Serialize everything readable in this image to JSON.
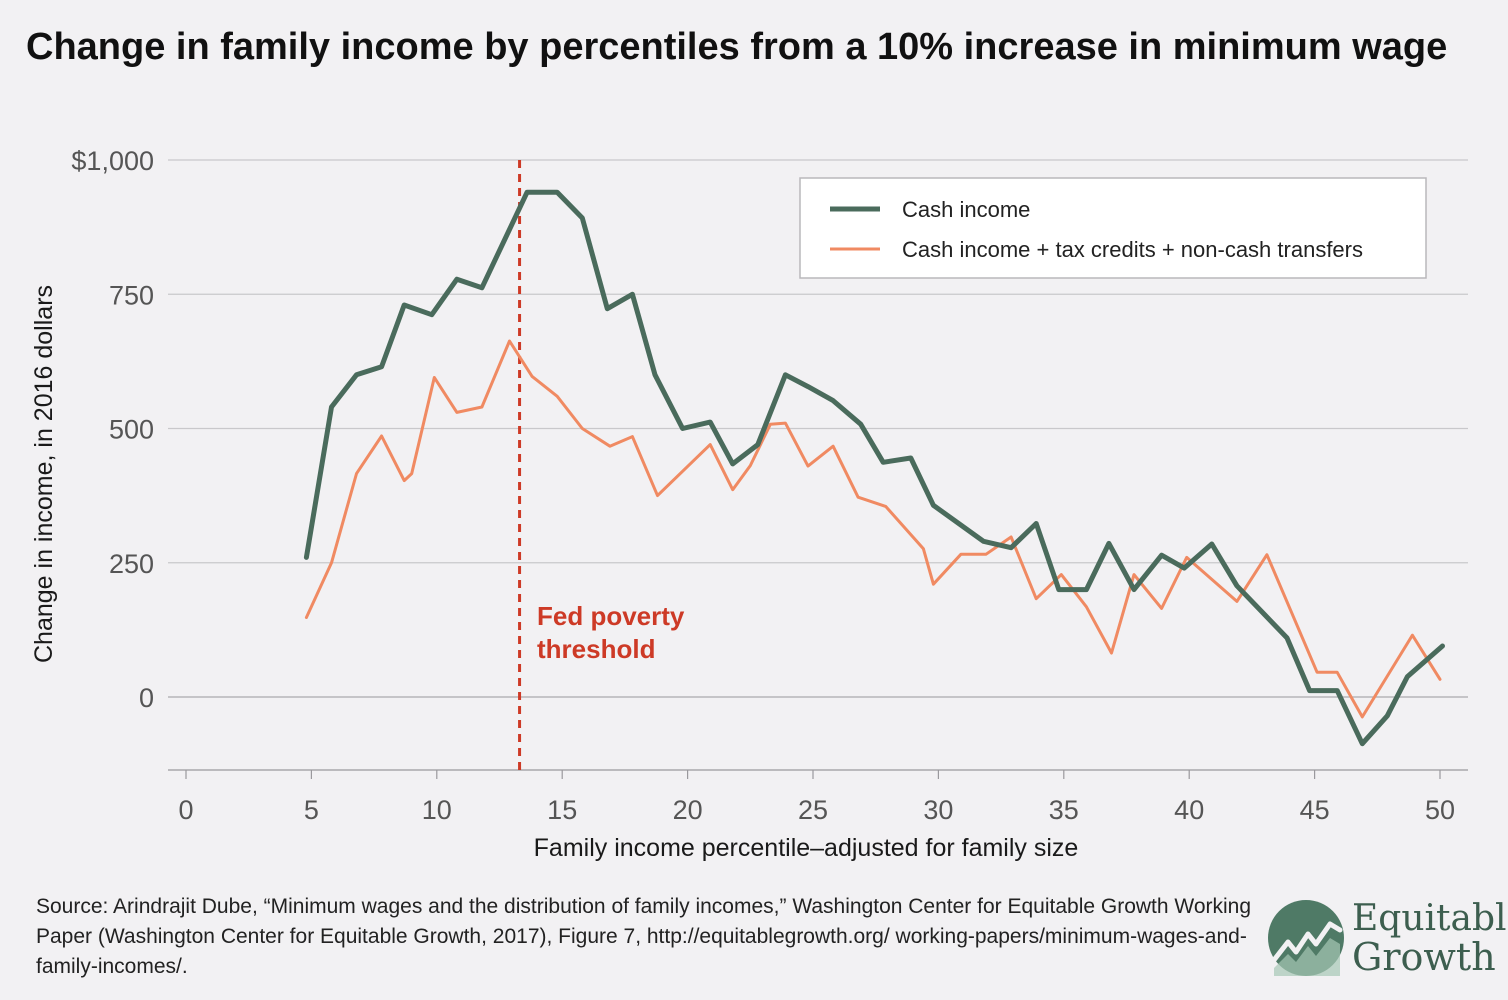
{
  "colors": {
    "background": "#f2f1f3",
    "cash": "#4a6b5c",
    "total": "#f08a62",
    "threshold": "#cd3a26",
    "grid": "#c9c8cb",
    "axis_text": "#555555",
    "logo_green": "#3d5e4f"
  },
  "source": "Source: Arindrajit Dube, “Minimum wages and the distribution of family incomes,” Washington Center for Equitable Growth Working Paper (Washington Center for Equitable Growth, 2017), Figure 7, http://equitablegrowth.org/ working-papers/minimum-wages-and-family-incomes/.",
  "logo": {
    "word1": "Equitable",
    "word2": "Growth",
    "icon": "chart-circle-icon"
  },
  "chart_data": {
    "type": "line",
    "title": "Change in family income by percentiles from a 10% increase in minimum wage",
    "xlabel": "Family income percentile–adjusted for family size",
    "ylabel": "Change in income, in 2016 dollars",
    "xlim": [
      0,
      50
    ],
    "ylim": [
      -135,
      1000
    ],
    "x_ticks": [
      0,
      5,
      10,
      15,
      20,
      25,
      30,
      35,
      40,
      45,
      50
    ],
    "x_tick_labels": [
      "0",
      "5",
      "10",
      "15",
      "20",
      "25",
      "30",
      "35",
      "40",
      "45",
      "50"
    ],
    "y_ticks": [
      0,
      250,
      500,
      750,
      1000
    ],
    "y_tick_labels": [
      "0",
      "250",
      "500",
      "750",
      "$1,000"
    ],
    "grid": "horizontal",
    "legend_position": "top-right",
    "series": [
      {
        "name": "Cash income",
        "points": [
          [
            4.8,
            260
          ],
          [
            5.8,
            540
          ],
          [
            6.8,
            600
          ],
          [
            7.8,
            615
          ],
          [
            8.7,
            730
          ],
          [
            9.8,
            712
          ],
          [
            10.8,
            778
          ],
          [
            11.8,
            762
          ],
          [
            13.6,
            940
          ],
          [
            14.8,
            940
          ],
          [
            15.8,
            892
          ],
          [
            16.8,
            723
          ],
          [
            17.8,
            750
          ],
          [
            18.7,
            600
          ],
          [
            19.8,
            500
          ],
          [
            20.9,
            512
          ],
          [
            21.8,
            434
          ],
          [
            22.8,
            470
          ],
          [
            23.9,
            600
          ],
          [
            24.8,
            578
          ],
          [
            25.8,
            552
          ],
          [
            26.9,
            508
          ],
          [
            27.8,
            437
          ],
          [
            28.9,
            445
          ],
          [
            29.8,
            357
          ],
          [
            31.8,
            290
          ],
          [
            32.9,
            278
          ],
          [
            33.9,
            323
          ],
          [
            34.8,
            200
          ],
          [
            35.9,
            200
          ],
          [
            36.8,
            286
          ],
          [
            37.8,
            200
          ],
          [
            38.9,
            264
          ],
          [
            39.8,
            240
          ],
          [
            40.9,
            285
          ],
          [
            41.9,
            207
          ],
          [
            43.9,
            110
          ],
          [
            44.8,
            12
          ],
          [
            45.9,
            12
          ],
          [
            46.9,
            -87
          ],
          [
            47.9,
            -35
          ],
          [
            48.7,
            38
          ],
          [
            50.1,
            95
          ]
        ]
      },
      {
        "name": "Cash income + tax credits + non-cash transfers",
        "points": [
          [
            4.8,
            148
          ],
          [
            5.8,
            250
          ],
          [
            6.8,
            416
          ],
          [
            7.8,
            486
          ],
          [
            8.7,
            403
          ],
          [
            9.0,
            416
          ],
          [
            9.9,
            595
          ],
          [
            10.8,
            530
          ],
          [
            11.8,
            540
          ],
          [
            12.9,
            663
          ],
          [
            13.8,
            597
          ],
          [
            14.8,
            560
          ],
          [
            15.8,
            500
          ],
          [
            16.9,
            467
          ],
          [
            17.8,
            485
          ],
          [
            18.8,
            375
          ],
          [
            20.9,
            470
          ],
          [
            21.8,
            386
          ],
          [
            22.5,
            431
          ],
          [
            23.3,
            508
          ],
          [
            23.9,
            510
          ],
          [
            24.8,
            430
          ],
          [
            25.8,
            467
          ],
          [
            26.8,
            372
          ],
          [
            27.9,
            355
          ],
          [
            29.4,
            276
          ],
          [
            29.8,
            210
          ],
          [
            30.9,
            266
          ],
          [
            31.9,
            266
          ],
          [
            32.9,
            298
          ],
          [
            33.9,
            183
          ],
          [
            34.9,
            228
          ],
          [
            35.9,
            168
          ],
          [
            36.9,
            82
          ],
          [
            37.8,
            228
          ],
          [
            38.9,
            165
          ],
          [
            39.9,
            260
          ],
          [
            41.9,
            178
          ],
          [
            43.1,
            265
          ],
          [
            45.1,
            46
          ],
          [
            45.9,
            46
          ],
          [
            46.9,
            -37
          ],
          [
            48.9,
            115
          ],
          [
            50,
            33
          ]
        ]
      }
    ],
    "annotations": [
      {
        "type": "vline",
        "x": 13.3,
        "label_line1": "Fed poverty",
        "label_line2": "threshold"
      }
    ]
  }
}
